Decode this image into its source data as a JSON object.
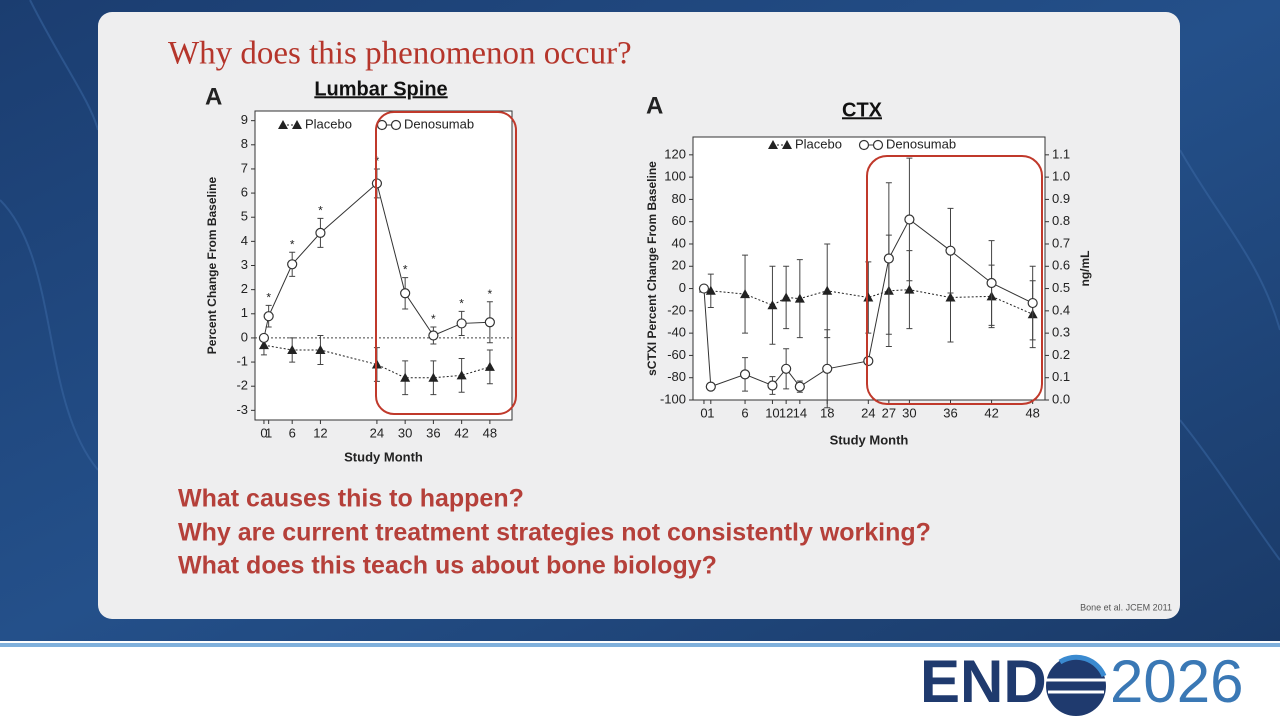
{
  "title": "Why does this phenomenon occur?",
  "questions": [
    "What causes this to happen?",
    "Why are current treatment strategies not consistently working?",
    "What does this teach us about bone biology?"
  ],
  "citation": "Bone et al. JCEM 2011",
  "logo": {
    "left": "END",
    "right": "2026"
  },
  "chart_data": [
    {
      "type": "line",
      "label": "A",
      "title": "Lumbar Spine",
      "xlabel": "Study Month",
      "ylabel": "Percent Change From Baseline",
      "xlim": [
        -1.9,
        52.7
      ],
      "xticks": [
        0,
        1,
        6,
        12,
        24,
        30,
        36,
        42,
        48
      ],
      "ylim": [
        -3.4,
        9.4
      ],
      "yticks": [
        -3,
        -2,
        -1,
        0,
        1,
        2,
        3,
        4,
        5,
        6,
        7,
        8,
        9
      ],
      "reference_line": 0,
      "series": [
        {
          "name": "Placebo",
          "color": "#222222",
          "marker": "triangle",
          "dashed": true,
          "x": [
            0,
            6,
            12,
            24,
            30,
            36,
            42,
            48
          ],
          "values": [
            -0.3,
            -0.5,
            -0.5,
            -1.1,
            -1.65,
            -1.65,
            -1.55,
            -1.2
          ],
          "errors": [
            0.4,
            0.5,
            0.6,
            0.7,
            0.7,
            0.7,
            0.7,
            0.7
          ]
        },
        {
          "name": "Denosumab",
          "color": "#333333",
          "marker": "circle",
          "dashed": false,
          "x": [
            0,
            1,
            6,
            12,
            24,
            30,
            36,
            42,
            48
          ],
          "values": [
            0,
            0.9,
            3.05,
            4.35,
            6.4,
            1.85,
            0.1,
            0.6,
            0.65
          ],
          "errors": [
            null,
            0.45,
            0.5,
            0.6,
            0.6,
            0.65,
            0.35,
            0.5,
            0.85
          ],
          "labels": [
            null,
            "*",
            "*",
            "*",
            "*",
            "*",
            "*",
            "*",
            "*"
          ]
        }
      ]
    },
    {
      "type": "line",
      "label": "A",
      "title": "CTX",
      "xlabel": "Study Month",
      "ylabel": "sCTXI Percent Change From Baseline",
      "y2label": "ng/mL",
      "xlim": [
        -1.6,
        49.8
      ],
      "xticks": [
        0,
        1,
        6,
        10,
        12,
        14,
        18,
        24,
        27,
        30,
        36,
        42,
        48
      ],
      "ylim": [
        -100,
        136
      ],
      "yticks": [
        -100,
        -80,
        -60,
        -40,
        -20,
        0,
        20,
        40,
        60,
        80,
        100,
        120
      ],
      "y2lim": [
        0,
        1.18
      ],
      "y2ticks": [
        {
          "value": 0,
          "label": "0.0"
        },
        0.1,
        0.2,
        0.3,
        0.4,
        0.5,
        0.6,
        0.7,
        0.8,
        0.9,
        {
          "value": 1,
          "label": "1.0"
        },
        1.1
      ],
      "series": [
        {
          "name": "Placebo",
          "color": "#222222",
          "marker": "triangle",
          "dashed": true,
          "x": [
            0,
            1,
            6,
            10,
            12,
            14,
            18,
            24,
            27,
            30,
            36,
            42,
            48
          ],
          "values": [
            0,
            -2,
            -5,
            -15,
            -8,
            -9,
            -2,
            -8,
            -2,
            -1,
            -8,
            -7,
            -23
          ],
          "errors": [
            null,
            15,
            35,
            35,
            28,
            35,
            42,
            32,
            50,
            35,
            40,
            28,
            30
          ]
        },
        {
          "name": "Denosumab",
          "color": "#333333",
          "marker": "circle",
          "dashed": false,
          "x": [
            0,
            1,
            6,
            10,
            12,
            14,
            18,
            24,
            27,
            30,
            36,
            42,
            48
          ],
          "values": [
            0,
            -88,
            -77,
            -87,
            -72,
            -88,
            -72,
            -65,
            27,
            62,
            34,
            5,
            -13
          ],
          "errors": [
            null,
            null,
            15,
            8,
            18,
            5,
            35,
            null,
            68,
            55,
            38,
            38,
            33
          ]
        }
      ]
    }
  ]
}
